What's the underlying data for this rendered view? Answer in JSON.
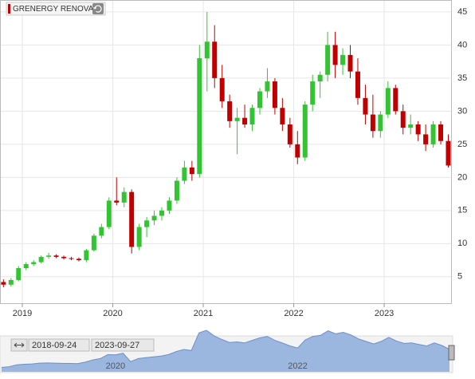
{
  "chart_data": {
    "type": "candlestick",
    "title": "GRENERGY RENOVA",
    "range_start": "2018-09-24",
    "range_end": "2023-09-27",
    "categories": [
      null,
      null,
      null,
      "2019",
      null,
      null,
      null,
      null,
      null,
      null,
      null,
      null,
      null,
      null,
      null,
      "2020",
      null,
      null,
      null,
      null,
      null,
      null,
      null,
      null,
      null,
      null,
      null,
      "2021",
      null,
      null,
      null,
      null,
      null,
      null,
      null,
      null,
      null,
      null,
      null,
      "2022",
      null,
      null,
      null,
      null,
      null,
      null,
      null,
      null,
      null,
      null,
      null,
      "2023",
      null,
      null,
      null,
      null,
      null,
      null,
      null,
      null
    ],
    "open": [
      4.2,
      3.8,
      4.5,
      6.3,
      6.9,
      7.2,
      8.0,
      8.2,
      8.0,
      7.8,
      7.7,
      7.5,
      9.0,
      11.2,
      12.5,
      16.5,
      16.2,
      17.8,
      9.5,
      12.5,
      13.5,
      14.2,
      15.0,
      16.5,
      19.5,
      21.5,
      20.5,
      38.0,
      40.5,
      35.0,
      31.5,
      28.5,
      29.0,
      28.0,
      30.5,
      33.0,
      34.5,
      30.5,
      28.0,
      25.0,
      23.0,
      31.0,
      34.5,
      35.5,
      40.0,
      37.0,
      38.5,
      36.0,
      32.0,
      29.5,
      27.0,
      29.5,
      33.5,
      30.0,
      27.5,
      28.0,
      26.5,
      25.0,
      28.0,
      25.5
    ],
    "high": [
      4.6,
      4.8,
      6.6,
      7.2,
      7.5,
      8.2,
      8.6,
      8.4,
      8.2,
      8.0,
      7.9,
      9.2,
      11.5,
      13.0,
      17.0,
      20.0,
      18.5,
      18.2,
      13.0,
      14.0,
      15.0,
      15.5,
      17.0,
      20.0,
      22.5,
      22.5,
      40.0,
      45.0,
      43.0,
      37.0,
      32.5,
      30.5,
      31.0,
      31.0,
      33.5,
      36.5,
      35.0,
      32.0,
      29.0,
      27.0,
      31.5,
      35.5,
      36.0,
      42.0,
      42.0,
      39.5,
      40.0,
      38.0,
      34.0,
      32.5,
      30.0,
      34.5,
      34.0,
      31.0,
      29.5,
      28.5,
      28.0,
      28.5,
      28.5,
      26.5
    ],
    "low": [
      3.4,
      3.5,
      4.3,
      6.0,
      6.6,
      7.0,
      7.7,
      7.8,
      7.6,
      7.5,
      7.3,
      7.2,
      8.8,
      10.8,
      12.2,
      15.8,
      15.5,
      8.5,
      9.0,
      11.0,
      12.8,
      13.5,
      14.5,
      16.0,
      19.0,
      19.5,
      20.0,
      33.0,
      33.5,
      30.5,
      27.5,
      23.5,
      27.5,
      27.0,
      29.5,
      32.0,
      29.5,
      27.0,
      24.5,
      22.0,
      22.5,
      30.0,
      32.0,
      34.5,
      35.0,
      35.5,
      35.0,
      31.0,
      28.0,
      26.0,
      26.0,
      29.0,
      29.5,
      26.5,
      26.5,
      25.5,
      24.0,
      24.5,
      25.0,
      21.5
    ],
    "close": [
      3.8,
      4.5,
      6.3,
      6.9,
      7.2,
      8.0,
      8.2,
      8.0,
      7.8,
      7.7,
      7.5,
      9.0,
      11.2,
      12.5,
      16.5,
      16.2,
      17.8,
      9.5,
      12.5,
      13.5,
      14.2,
      15.0,
      16.5,
      19.5,
      21.5,
      20.5,
      38.0,
      40.5,
      35.0,
      31.5,
      28.5,
      29.0,
      28.0,
      30.5,
      33.0,
      34.5,
      30.5,
      28.0,
      25.0,
      23.0,
      31.0,
      34.5,
      35.5,
      40.0,
      37.0,
      38.5,
      36.0,
      32.0,
      29.5,
      27.0,
      29.5,
      33.5,
      30.0,
      27.5,
      28.0,
      26.5,
      25.0,
      28.0,
      25.5,
      21.8
    ],
    "up_color": "#33c433",
    "down_color": "#c00000",
    "ylim": [
      1,
      46.8
    ],
    "yticks": [
      5,
      10,
      15,
      20,
      25,
      30,
      35,
      40,
      45
    ],
    "grid": true,
    "navigator_labels": [
      "2020",
      "2022"
    ],
    "navigator_color": "#9bb7e0"
  }
}
